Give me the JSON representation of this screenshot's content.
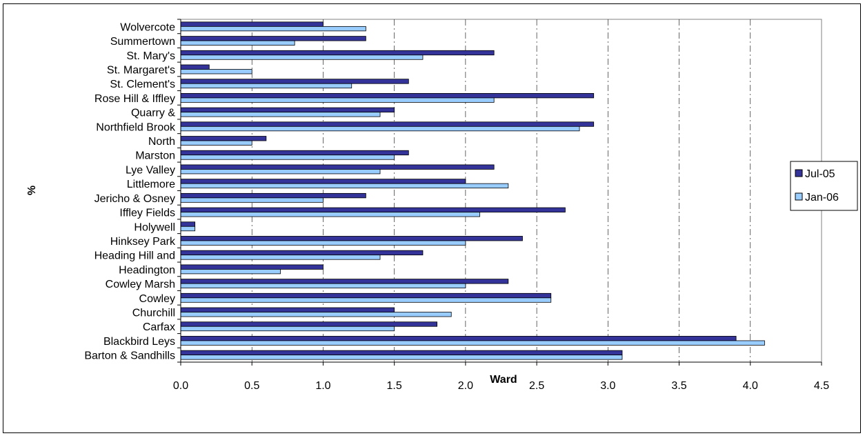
{
  "chart_data": {
    "type": "bar",
    "orientation": "horizontal",
    "categories": [
      "Wolvercote",
      "Summertown",
      "St. Mary's",
      "St. Margaret's",
      "St. Clement's",
      "Rose Hill & Iffley",
      "Quarry &",
      "Northfield Brook",
      "North",
      "Marston",
      "Lye Valley",
      "Littlemore",
      "Jericho & Osney",
      "Iffley Fields",
      "Holywell",
      "Hinksey Park",
      "Heading Hill and",
      "Headington",
      "Cowley Marsh",
      "Cowley",
      "Churchill",
      "Carfax",
      "Blackbird Leys",
      "Barton & Sandhills"
    ],
    "series": [
      {
        "name": "Jul-05",
        "color": "#333399",
        "values": [
          1.0,
          1.3,
          2.2,
          0.2,
          1.6,
          2.9,
          1.5,
          2.9,
          0.6,
          1.6,
          2.2,
          2.0,
          1.3,
          2.7,
          0.1,
          2.4,
          1.7,
          1.0,
          2.3,
          2.6,
          1.5,
          1.8,
          3.9,
          3.1
        ]
      },
      {
        "name": "Jan-06",
        "color": "#99CCFF",
        "values": [
          1.3,
          0.8,
          1.7,
          0.5,
          1.2,
          2.2,
          1.4,
          2.8,
          0.5,
          1.5,
          1.4,
          2.3,
          1.0,
          2.1,
          0.1,
          2.0,
          1.4,
          0.7,
          2.0,
          2.6,
          1.9,
          1.5,
          4.1,
          3.1
        ]
      }
    ],
    "xlabel": "Ward",
    "ylabel": "%",
    "xlim": [
      0,
      4.5
    ],
    "x_ticks": [
      "0.0",
      "0.5",
      "1.0",
      "1.5",
      "2.0",
      "2.5",
      "3.0",
      "3.5",
      "4.0",
      "4.5"
    ],
    "grid": "vertical dashed",
    "legend_position": "right",
    "title": ""
  }
}
